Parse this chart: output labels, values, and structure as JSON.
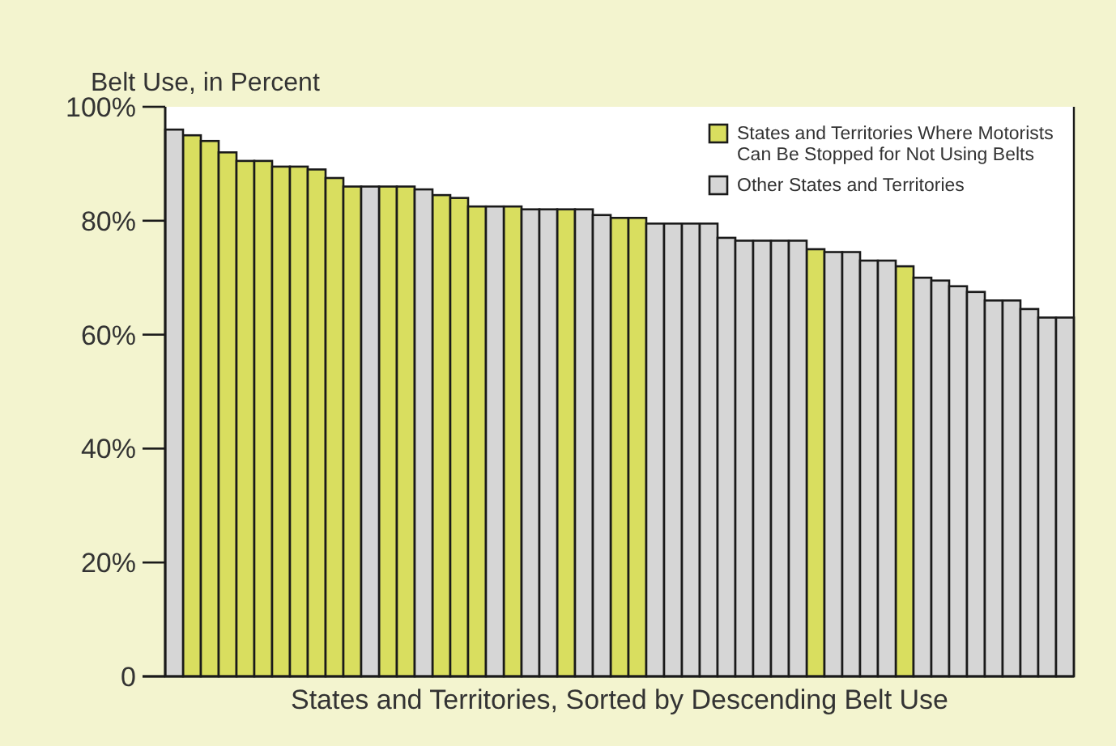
{
  "chart_data": {
    "type": "bar",
    "xlabel": "States and Territories, Sorted by Descending Belt Use",
    "ylabel": "Belt Use, in Percent",
    "categories": [
      null,
      null,
      null,
      null,
      null,
      null,
      null,
      null,
      null,
      null,
      null,
      null,
      null,
      null,
      null,
      null,
      null,
      null,
      null,
      null,
      null,
      null,
      null,
      null,
      null,
      null,
      null,
      null,
      null,
      null,
      null,
      null,
      null,
      null,
      null,
      null,
      null,
      null,
      null,
      null,
      null,
      null,
      null,
      null,
      null,
      null,
      null,
      null,
      null,
      null,
      null
    ],
    "series": [
      {
        "name": "States and Territories Where Motorists Can Be Stopped for Not Using Belts",
        "color": "#d9de5f",
        "values": [
          null,
          95,
          94,
          92,
          90.5,
          90.5,
          89.5,
          89.5,
          89,
          87.5,
          86,
          null,
          86,
          86,
          null,
          84.5,
          84,
          82.5,
          null,
          82.5,
          null,
          null,
          82,
          null,
          null,
          80.5,
          80.5,
          null,
          null,
          null,
          null,
          null,
          null,
          null,
          null,
          null,
          75,
          null,
          null,
          null,
          null,
          72,
          null,
          null,
          null,
          null,
          null,
          null,
          null,
          null,
          null
        ]
      },
      {
        "name": "Other States and Territories",
        "color": "#d6d6d6",
        "values": [
          96,
          null,
          null,
          null,
          null,
          null,
          null,
          null,
          null,
          null,
          null,
          86,
          null,
          null,
          85.5,
          null,
          null,
          null,
          82.5,
          null,
          82,
          82,
          null,
          82,
          81,
          null,
          null,
          79.5,
          79.5,
          79.5,
          79.5,
          77,
          76.5,
          76.5,
          76.5,
          76.5,
          null,
          74.5,
          74.5,
          73,
          73,
          null,
          70,
          69.5,
          68.5,
          67.5,
          66,
          66,
          64.5,
          63,
          63
        ]
      }
    ],
    "ylim": [
      0,
      100
    ],
    "yticks": [
      {
        "value": 0,
        "label": "0"
      },
      {
        "value": 20,
        "label": "20%"
      },
      {
        "value": 40,
        "label": "40%"
      },
      {
        "value": 60,
        "label": "60%"
      },
      {
        "value": 80,
        "label": "80%"
      },
      {
        "value": 100,
        "label": "100%"
      }
    ],
    "stacked": true,
    "legend": "top right",
    "grid": false
  }
}
